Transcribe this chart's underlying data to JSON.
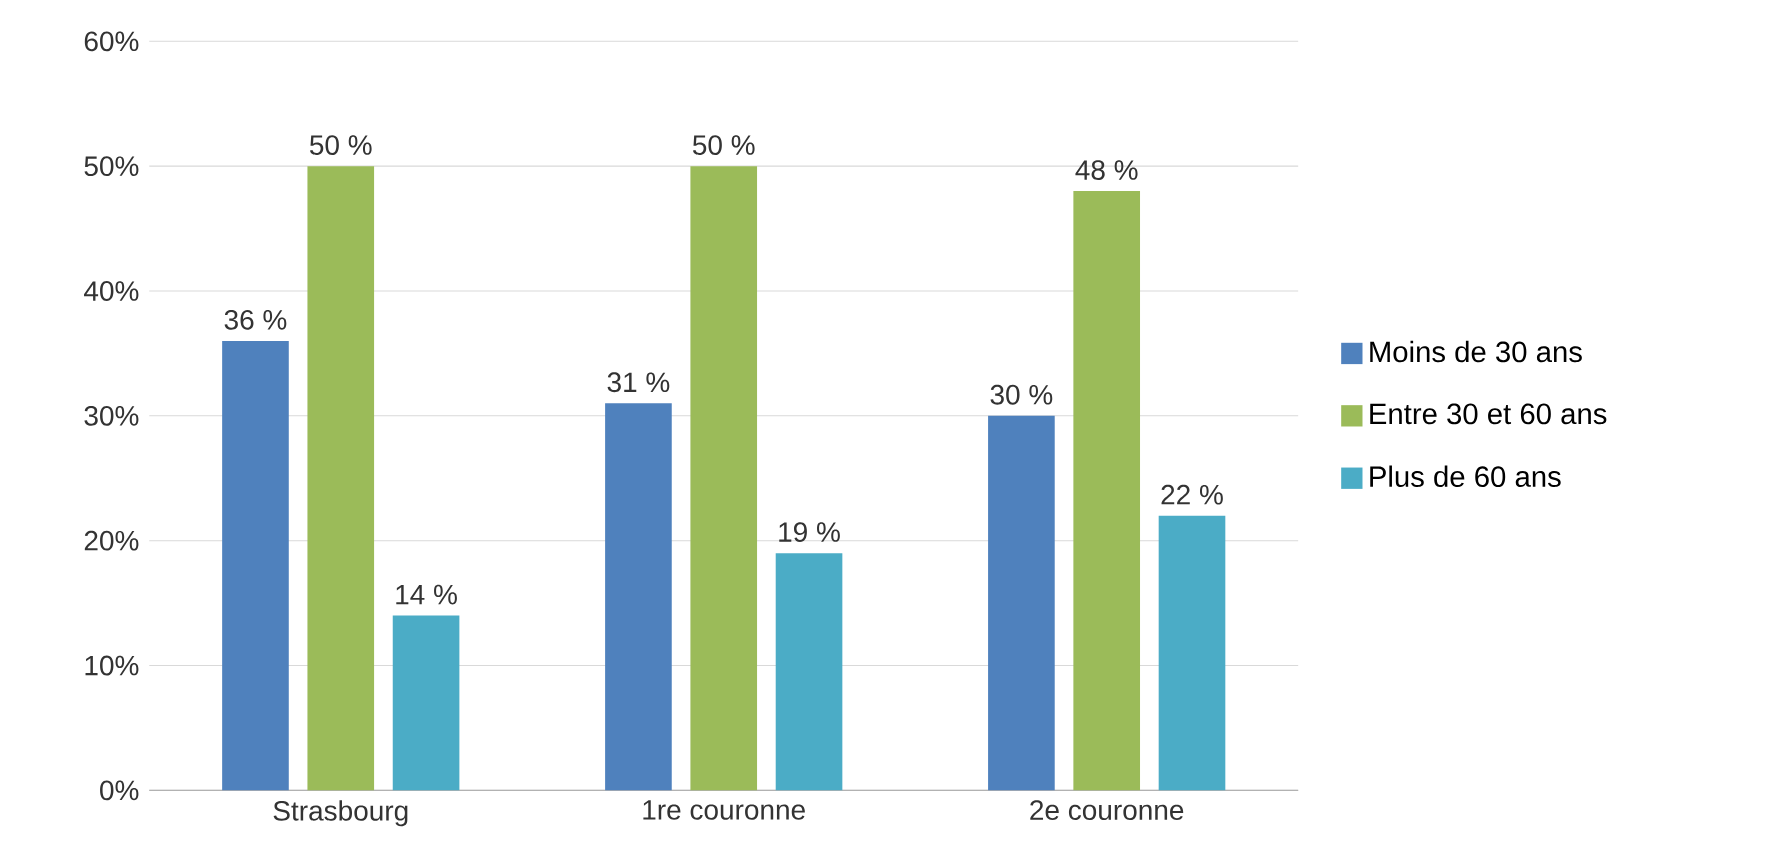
{
  "chart_data": {
    "type": "bar",
    "categories": [
      "Strasbourg",
      "1re couronne",
      "2e couronne"
    ],
    "series": [
      {
        "name": "Moins de 30 ans",
        "color": "#4f81bd",
        "values": [
          36,
          31,
          30
        ],
        "value_labels": [
          "36 %",
          "31 %",
          "30 %"
        ]
      },
      {
        "name": "Entre 30 et 60 ans",
        "color": "#9bbb59",
        "values": [
          50,
          50,
          48
        ],
        "value_labels": [
          "50 %",
          "50 %",
          "48 %"
        ]
      },
      {
        "name": "Plus de 60 ans",
        "color": "#4bacc6",
        "values": [
          14,
          19,
          22
        ],
        "value_labels": [
          "14 %",
          "19 %",
          "22 %"
        ]
      }
    ],
    "ylim": [
      0,
      60
    ],
    "yticks": [
      {
        "value": 0,
        "label": "0%"
      },
      {
        "value": 10,
        "label": "10%"
      },
      {
        "value": 20,
        "label": "20%"
      },
      {
        "value": 30,
        "label": "30%"
      },
      {
        "value": 40,
        "label": "40%"
      },
      {
        "value": 50,
        "label": "50%"
      },
      {
        "value": 60,
        "label": "60%"
      }
    ],
    "grid": "y",
    "legend": "right"
  }
}
